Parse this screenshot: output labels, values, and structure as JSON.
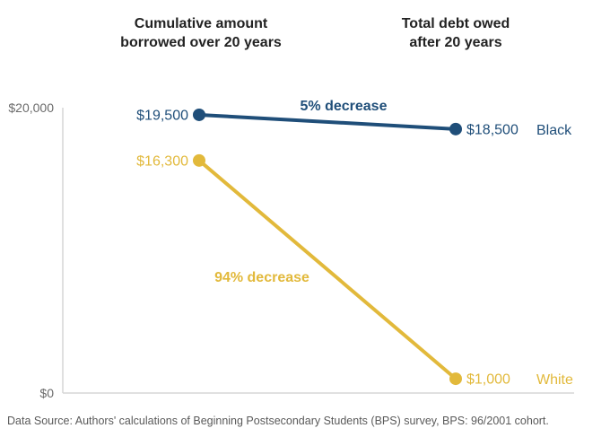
{
  "chart_data": {
    "type": "line",
    "categories": [
      "Cumulative amount borrowed over 20 years",
      "Total debt owed after 20 years"
    ],
    "column_headers": [
      [
        "Cumulative amount",
        "borrowed  over 20 years"
      ],
      [
        "Total debt owed",
        "after 20 years"
      ]
    ],
    "series": [
      {
        "name": "Black",
        "values": [
          19500,
          18500
        ],
        "value_labels": [
          "$19,500",
          "$18,500"
        ],
        "change_label": "5% decrease",
        "color": "#1f4e79"
      },
      {
        "name": "White",
        "values": [
          16300,
          1000
        ],
        "value_labels": [
          "$16,300",
          "$1,000"
        ],
        "change_label": "94% decrease",
        "color": "#e2b93b"
      }
    ],
    "y_ticks": [
      {
        "value": 0,
        "label": "$0"
      },
      {
        "value": 20000,
        "label": "$20,000"
      }
    ],
    "ylim": [
      0,
      20000
    ],
    "grid": false,
    "legend": "direct labels at right end of lines"
  },
  "source_note": "Data Source: Authors' calculations of Beginning Postsecondary Students (BPS) survey, BPS: 96/2001 cohort."
}
